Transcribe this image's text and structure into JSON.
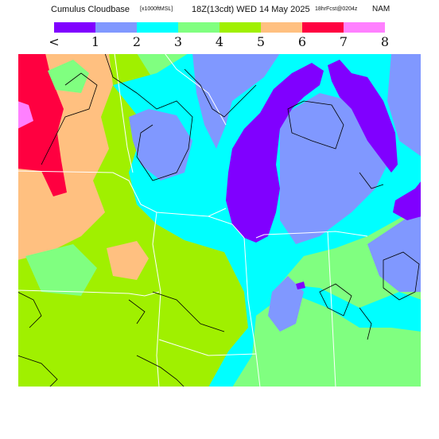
{
  "header": {
    "title": "Cumulus Cloudbase",
    "units": "[x1000ftMSL]",
    "valid_time": "18Z(13cdt) WED 14 May 2025",
    "forecast": "18hrFcst@0204z",
    "model": "NAM"
  },
  "legend": {
    "tick_labels": [
      "<",
      "1",
      "2",
      "3",
      "4",
      "5",
      "6",
      "7",
      "8"
    ],
    "bins": [
      {
        "label": "<1",
        "color": "#8000ff"
      },
      {
        "label": "1-2",
        "color": "#8098ff"
      },
      {
        "label": "2-3",
        "color": "#00ffff"
      },
      {
        "label": "3-4",
        "color": "#80ff80"
      },
      {
        "label": "4-5",
        "color": "#a0f000"
      },
      {
        "label": "5-6",
        "color": "#ffc080"
      },
      {
        "label": "6-7",
        "color": "#ff0040"
      },
      {
        "label": "7-8",
        "color": "#ff80ff"
      }
    ]
  },
  "colors": {
    "background": "#ffffff",
    "map_border": "#ffffff",
    "contour": "#000000"
  }
}
